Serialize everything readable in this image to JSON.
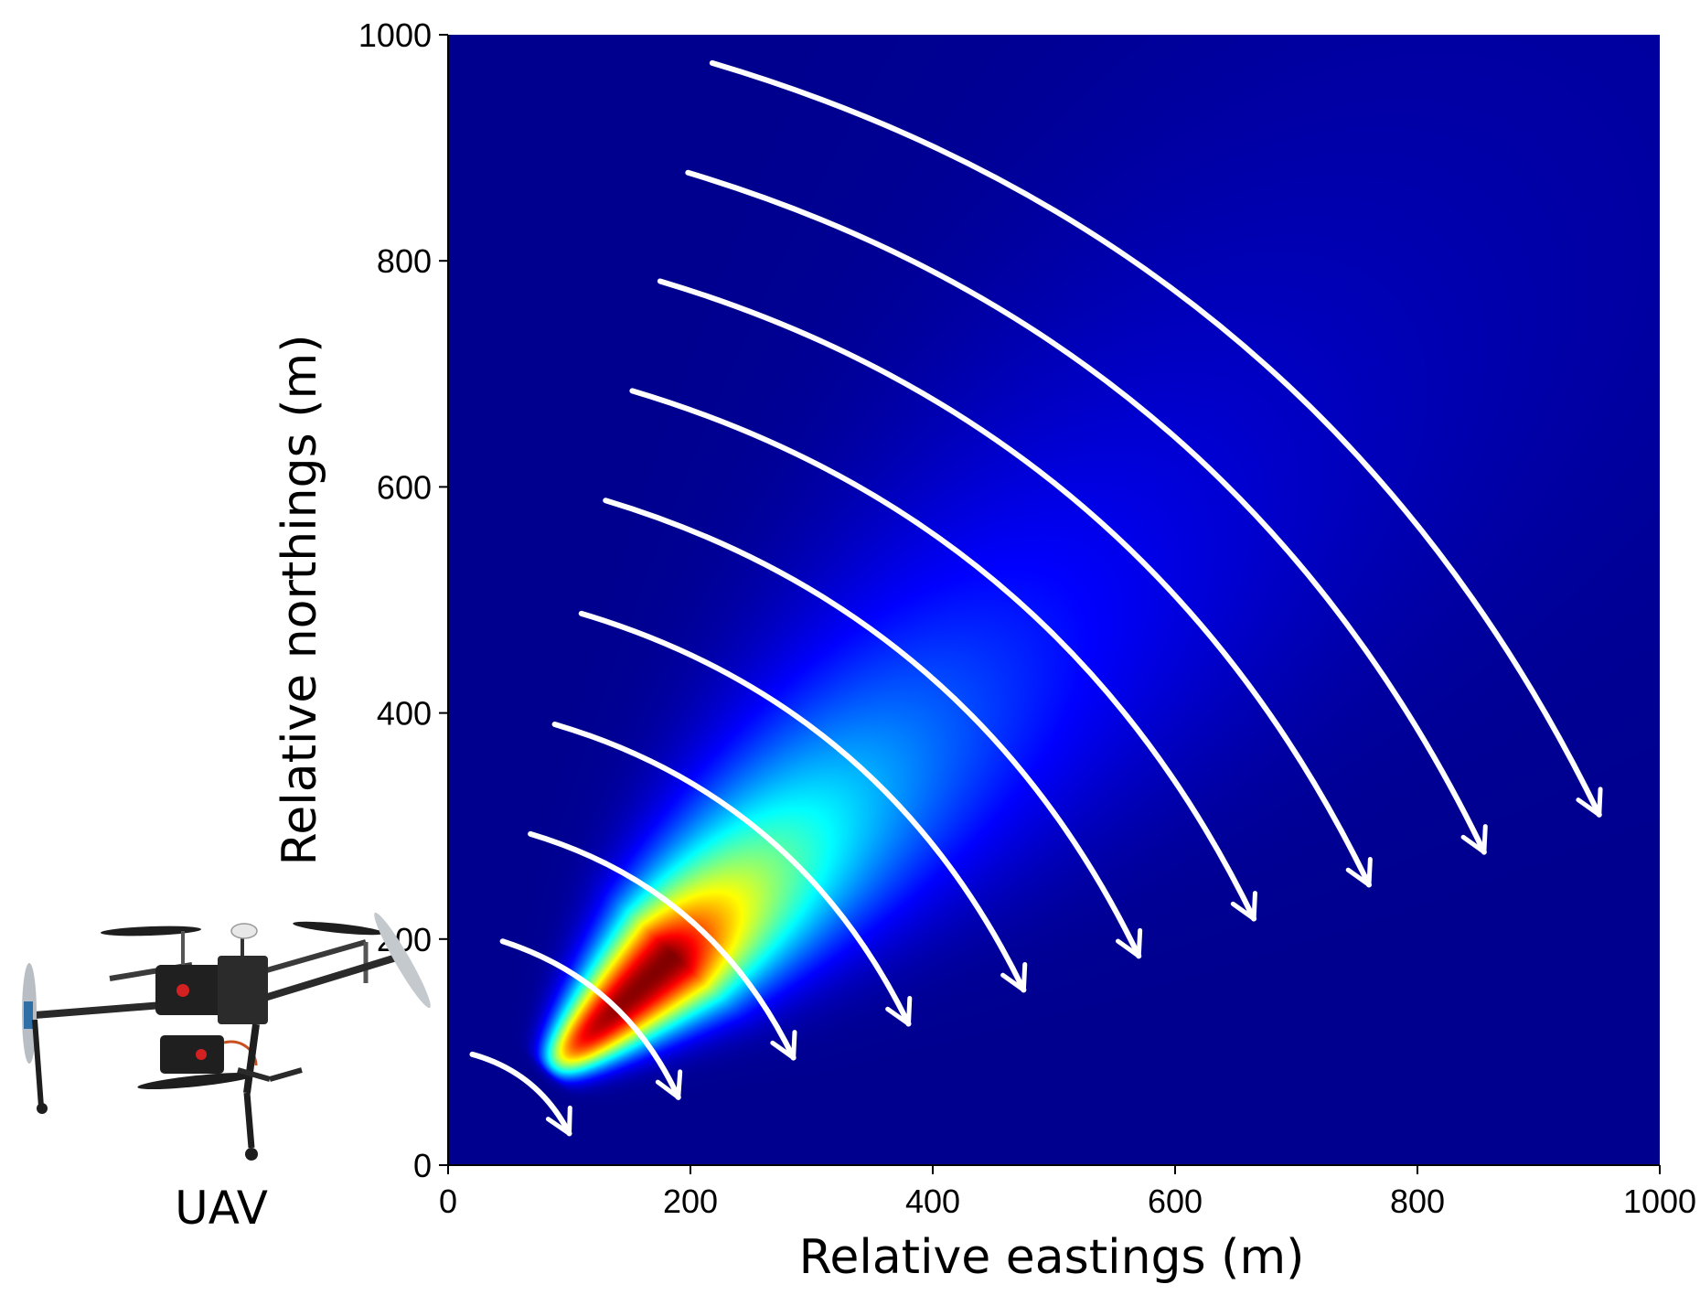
{
  "chart_data": {
    "type": "heatmap",
    "title": "",
    "xlabel": "Relative eastings (m)",
    "ylabel": "Relative northings (m)",
    "xlim": [
      0,
      1000
    ],
    "ylim": [
      0,
      1000
    ],
    "x_ticks": [
      0,
      200,
      400,
      600,
      800,
      1000
    ],
    "y_ticks": [
      0,
      200,
      400,
      600,
      800,
      1000
    ],
    "grid": false,
    "colormap": "jet",
    "colormap_stops": [
      "#00008f",
      "#0000ff",
      "#0080ff",
      "#00ffff",
      "#80ff80",
      "#ffff00",
      "#ff8000",
      "#ff0000",
      "#800000"
    ],
    "plume": {
      "source": [
        80,
        80
      ],
      "direction": [
        1,
        1
      ],
      "peak_along_axis": 150,
      "spread_rate": 0.18,
      "base_spread": 12
    },
    "arrows": [
      {
        "start": [
          20,
          98
        ],
        "end": [
          100,
          28
        ]
      },
      {
        "start": [
          45,
          198
        ],
        "end": [
          190,
          60
        ]
      },
      {
        "start": [
          68,
          293
        ],
        "end": [
          285,
          95
        ]
      },
      {
        "start": [
          88,
          390
        ],
        "end": [
          380,
          125
        ]
      },
      {
        "start": [
          110,
          488
        ],
        "end": [
          475,
          155
        ]
      },
      {
        "start": [
          130,
          588
        ],
        "end": [
          570,
          185
        ]
      },
      {
        "start": [
          152,
          685
        ],
        "end": [
          665,
          218
        ]
      },
      {
        "start": [
          175,
          782
        ],
        "end": [
          760,
          248
        ]
      },
      {
        "start": [
          198,
          878
        ],
        "end": [
          855,
          277
        ]
      },
      {
        "start": [
          218,
          975
        ],
        "end": [
          950,
          310
        ]
      }
    ],
    "annotations": [
      "UAV"
    ]
  },
  "icons": {
    "uav": "quadcopter-drone-icon"
  },
  "uav_label": "UAV"
}
